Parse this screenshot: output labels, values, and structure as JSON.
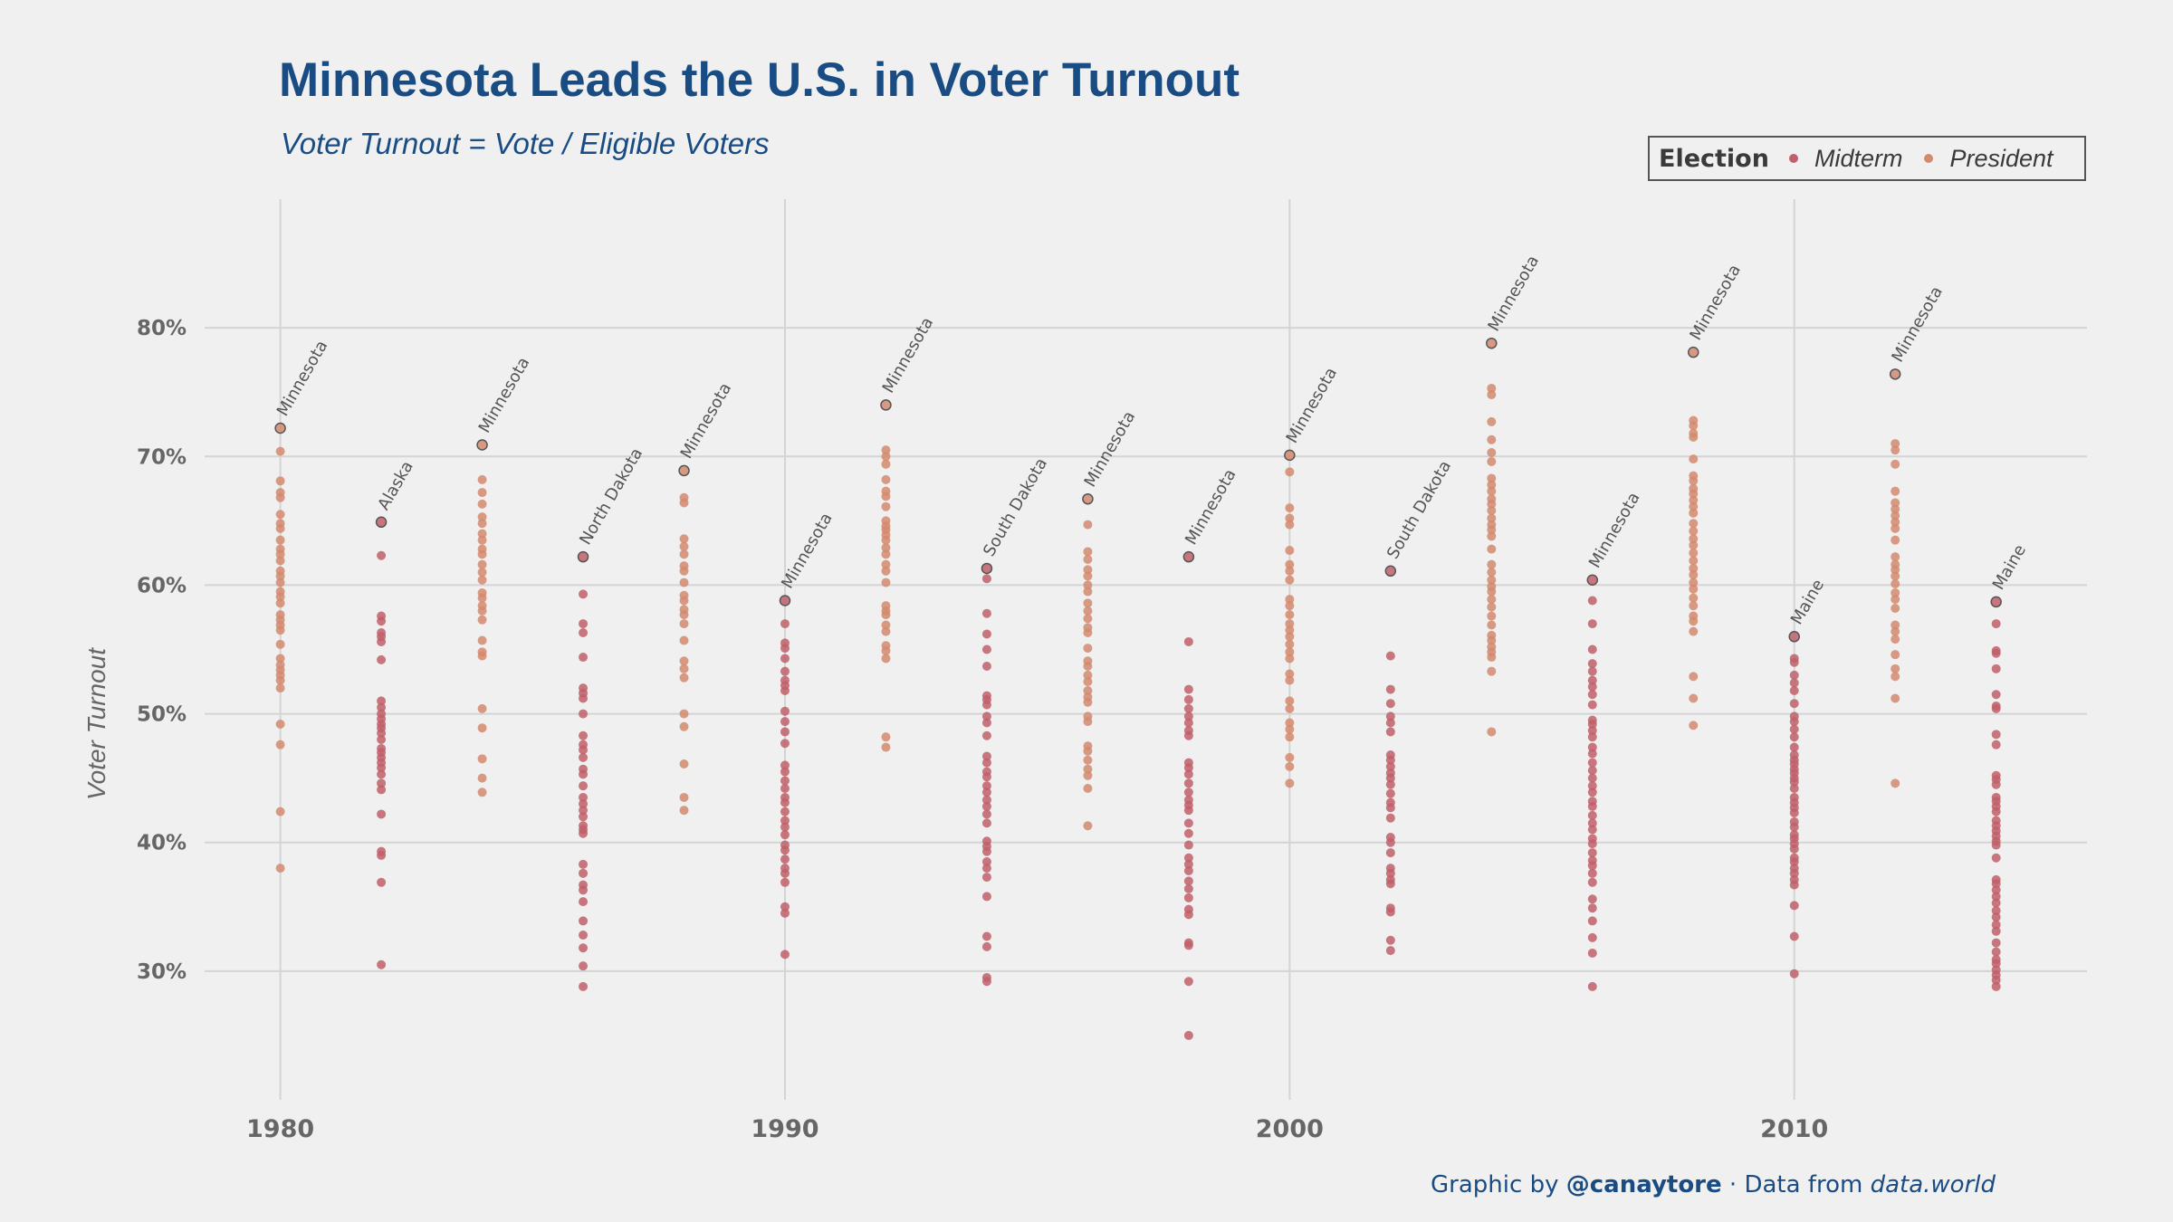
{
  "title": "Minnesota Leads the U.S. in Voter Turnout",
  "subtitle": "Voter Turnout = Vote / Eligible Voters",
  "legend": {
    "title": "Election",
    "items": [
      {
        "label": "Midterm",
        "color": "#c0606a"
      },
      {
        "label": "President",
        "color": "#d48a6e"
      }
    ]
  },
  "caption": {
    "prefix": "Graphic by ",
    "handle": "@canaytore",
    "middle": " · Data from ",
    "source": "data.world"
  },
  "chart_data": {
    "type": "scatter",
    "title": "Minnesota Leads the U.S. in Voter Turnout",
    "subtitle": "Voter Turnout = Vote / Eligible Voters",
    "xlabel": "",
    "ylabel": "Voter Turnout",
    "xlim": [
      1978.5,
      2015.8
    ],
    "ylim": [
      20,
      90
    ],
    "x_ticks": [
      1980,
      1990,
      2000,
      2010
    ],
    "y_ticks": [
      30,
      40,
      50,
      60,
      70,
      80
    ],
    "y_tick_labels": [
      "30%",
      "40%",
      "50%",
      "60%",
      "70%",
      "80%"
    ],
    "grid": true,
    "legend_position": "top-right",
    "series": [
      {
        "name": "Midterm",
        "color": "#c0606a",
        "points": [
          {
            "x": 1982,
            "values": [
              64.9,
              62.3,
              57.6,
              57.2,
              56.3,
              56.0,
              55.6,
              54.2,
              51.0,
              50.5,
              50.0,
              49.6,
              49.2,
              48.9,
              48.5,
              48.0,
              47.3,
              47.0,
              46.6,
              46.2,
              45.8,
              45.3,
              44.6,
              44.1,
              42.2,
              39.3,
              39.0,
              36.9,
              30.5
            ]
          },
          {
            "x": 1986,
            "values": [
              62.2,
              59.3,
              57.0,
              56.3,
              54.4,
              52.0,
              51.6,
              51.2,
              50.0,
              48.3,
              47.6,
              47.2,
              46.6,
              45.7,
              45.3,
              44.4,
              43.5,
              43.0,
              42.5,
              42.0,
              41.3,
              41.0,
              40.7,
              38.3,
              37.6,
              36.7,
              36.3,
              35.4,
              33.9,
              32.8,
              31.8,
              30.4,
              28.8
            ]
          },
          {
            "x": 1990,
            "values": [
              58.8,
              57.0,
              55.5,
              55.1,
              54.3,
              53.3,
              52.6,
              52.2,
              51.8,
              50.2,
              49.4,
              48.6,
              47.7,
              46.0,
              45.5,
              44.8,
              44.2,
              43.5,
              43.1,
              42.4,
              41.7,
              41.2,
              40.6,
              39.8,
              39.4,
              38.7,
              38.0,
              37.6,
              36.9,
              35.0,
              34.5,
              31.3
            ]
          },
          {
            "x": 1994,
            "values": [
              61.3,
              60.5,
              57.8,
              56.2,
              55.0,
              53.7,
              51.4,
              51.1,
              50.7,
              49.8,
              49.3,
              48.3,
              46.7,
              46.2,
              45.5,
              45.1,
              44.4,
              43.9,
              43.3,
              42.8,
              42.2,
              41.5,
              40.1,
              39.7,
              39.3,
              38.5,
              38.0,
              37.3,
              35.8,
              32.7,
              31.9,
              29.5,
              29.2
            ]
          },
          {
            "x": 1998,
            "values": [
              62.2,
              55.6,
              51.9,
              51.1,
              50.4,
              49.8,
              49.3,
              48.7,
              48.3,
              46.2,
              45.8,
              45.3,
              44.6,
              43.9,
              43.3,
              42.9,
              42.5,
              41.5,
              40.7,
              39.8,
              38.8,
              38.3,
              37.8,
              37.0,
              36.4,
              35.7,
              34.8,
              34.4,
              32.2,
              32.0,
              29.2,
              25.0
            ]
          },
          {
            "x": 2002,
            "values": [
              61.1,
              54.5,
              51.9,
              50.8,
              49.8,
              49.3,
              48.6,
              46.8,
              46.4,
              45.9,
              45.4,
              45.0,
              44.5,
              43.8,
              43.1,
              42.7,
              41.9,
              40.4,
              40.0,
              39.2,
              38.0,
              37.6,
              37.1,
              36.8,
              34.9,
              34.6,
              32.4,
              31.6
            ]
          },
          {
            "x": 2006,
            "values": [
              60.4,
              58.8,
              57.0,
              55.0,
              53.9,
              53.3,
              52.6,
              52.1,
              51.5,
              50.7,
              49.5,
              49.2,
              48.7,
              48.2,
              47.4,
              46.9,
              46.2,
              45.6,
              45.0,
              44.4,
              43.9,
              43.2,
              42.8,
              42.1,
              41.5,
              41.0,
              40.3,
              39.9,
              39.2,
              38.6,
              38.2,
              37.6,
              36.9,
              35.6,
              34.9,
              33.9,
              32.6,
              31.4,
              28.8
            ]
          },
          {
            "x": 2010,
            "values": [
              56.0,
              54.3,
              54.0,
              53.0,
              52.4,
              51.8,
              50.8,
              49.8,
              49.4,
              48.8,
              48.2,
              47.4,
              46.8,
              46.4,
              46.1,
              45.7,
              45.4,
              45.0,
              44.7,
              44.2,
              43.5,
              43.1,
              42.7,
              42.3,
              41.6,
              41.2,
              40.6,
              40.3,
              39.9,
              39.5,
              38.8,
              38.5,
              38.0,
              37.6,
              37.1,
              36.7,
              35.1,
              32.7,
              29.8
            ]
          },
          {
            "x": 2014,
            "values": [
              58.7,
              57.0,
              54.9,
              54.7,
              53.5,
              51.5,
              50.6,
              50.4,
              48.4,
              47.6,
              45.2,
              44.9,
              44.5,
              43.5,
              43.2,
              42.8,
              42.4,
              41.7,
              41.3,
              40.9,
              40.5,
              40.1,
              39.8,
              38.8,
              37.1,
              36.8,
              36.3,
              35.8,
              35.3,
              34.7,
              34.2,
              33.6,
              33.1,
              32.2,
              31.5,
              30.9,
              30.6,
              30.1,
              29.7,
              29.3,
              28.8
            ]
          }
        ]
      },
      {
        "name": "President",
        "color": "#d48a6e",
        "points": [
          {
            "x": 1980,
            "values": [
              72.2,
              70.4,
              68.1,
              67.2,
              66.8,
              65.5,
              64.8,
              64.4,
              63.5,
              62.8,
              62.4,
              61.9,
              61.1,
              60.7,
              60.2,
              59.5,
              59.1,
              58.6,
              57.7,
              57.3,
              56.9,
              56.5,
              55.4,
              54.3,
              53.8,
              53.4,
              53.0,
              52.6,
              52.0,
              49.2,
              47.6,
              42.4,
              38.0
            ]
          },
          {
            "x": 1984,
            "values": [
              70.9,
              68.2,
              67.2,
              66.3,
              65.3,
              64.8,
              64.0,
              63.5,
              62.8,
              62.4,
              61.6,
              61.0,
              60.4,
              59.4,
              59.0,
              58.4,
              58.0,
              57.3,
              55.7,
              54.8,
              54.5,
              50.4,
              48.9,
              46.5,
              45.0,
              43.9
            ]
          },
          {
            "x": 1988,
            "values": [
              68.9,
              66.8,
              66.4,
              63.6,
              63.0,
              62.4,
              61.5,
              61.1,
              60.2,
              59.2,
              58.8,
              58.1,
              57.7,
              57.0,
              55.7,
              54.1,
              53.5,
              52.8,
              50.0,
              49.0,
              46.1,
              43.5,
              42.5
            ]
          },
          {
            "x": 1992,
            "values": [
              74.0,
              70.5,
              70.0,
              69.4,
              68.2,
              67.3,
              66.9,
              66.1,
              65.0,
              64.6,
              64.3,
              63.9,
              63.5,
              62.9,
              62.4,
              61.6,
              61.1,
              60.2,
              58.4,
              58.0,
              57.7,
              56.9,
              56.4,
              55.3,
              54.9,
              54.3,
              48.2,
              47.4
            ]
          },
          {
            "x": 1996,
            "values": [
              66.7,
              64.7,
              62.6,
              62.0,
              61.2,
              60.7,
              60.0,
              59.5,
              58.6,
              58.0,
              57.4,
              56.7,
              56.3,
              55.1,
              54.1,
              53.7,
              53.0,
              52.5,
              51.8,
              51.3,
              50.9,
              49.8,
              49.4,
              47.5,
              47.1,
              46.4,
              45.7,
              45.2,
              44.2,
              41.3
            ]
          },
          {
            "x": 2000,
            "values": [
              70.1,
              68.8,
              66.0,
              65.2,
              64.7,
              62.7,
              61.6,
              61.1,
              60.4,
              58.9,
              58.4,
              57.7,
              57.0,
              56.5,
              56.0,
              55.4,
              54.8,
              54.3,
              53.1,
              52.6,
              51.0,
              50.4,
              49.3,
              48.8,
              48.2,
              46.6,
              45.9,
              44.6
            ]
          },
          {
            "x": 2004,
            "values": [
              78.8,
              75.3,
              74.8,
              72.7,
              71.3,
              70.3,
              69.6,
              68.3,
              67.8,
              67.3,
              66.7,
              66.3,
              65.8,
              65.2,
              64.7,
              64.3,
              63.8,
              62.8,
              61.6,
              61.0,
              60.4,
              59.9,
              59.5,
              58.9,
              58.3,
              57.6,
              56.9,
              56.1,
              55.7,
              55.2,
              54.8,
              54.4,
              53.3,
              48.6
            ]
          },
          {
            "x": 2008,
            "values": [
              78.1,
              72.8,
              72.4,
              71.8,
              71.5,
              69.8,
              68.5,
              68.1,
              67.5,
              67.1,
              66.6,
              66.1,
              65.6,
              64.8,
              64.2,
              63.6,
              63.1,
              62.5,
              61.9,
              61.3,
              60.8,
              60.2,
              59.7,
              59.0,
              58.4,
              57.6,
              57.2,
              56.4,
              52.9,
              51.2,
              49.1
            ]
          },
          {
            "x": 2012,
            "values": [
              76.4,
              71.0,
              70.5,
              69.4,
              67.3,
              66.4,
              65.9,
              65.4,
              64.9,
              64.4,
              63.5,
              62.2,
              61.6,
              61.2,
              60.7,
              60.1,
              59.4,
              58.9,
              58.2,
              56.9,
              56.4,
              55.8,
              54.6,
              53.5,
              52.9,
              51.2,
              44.6
            ]
          }
        ]
      }
    ],
    "annotations": [
      {
        "x": 1980,
        "y": 72.2,
        "text": "Minnesota"
      },
      {
        "x": 1982,
        "y": 64.9,
        "text": "Alaska"
      },
      {
        "x": 1984,
        "y": 70.9,
        "text": "Minnesota"
      },
      {
        "x": 1986,
        "y": 62.2,
        "text": "North Dakota"
      },
      {
        "x": 1988,
        "y": 68.9,
        "text": "Minnesota"
      },
      {
        "x": 1990,
        "y": 58.8,
        "text": "Minnesota"
      },
      {
        "x": 1992,
        "y": 74.0,
        "text": "Minnesota"
      },
      {
        "x": 1994,
        "y": 61.3,
        "text": "South Dakota"
      },
      {
        "x": 1996,
        "y": 66.7,
        "text": "Minnesota"
      },
      {
        "x": 1998,
        "y": 62.2,
        "text": "Minnesota"
      },
      {
        "x": 2000,
        "y": 70.1,
        "text": "Minnesota"
      },
      {
        "x": 2002,
        "y": 61.1,
        "text": "South Dakota"
      },
      {
        "x": 2004,
        "y": 78.8,
        "text": "Minnesota"
      },
      {
        "x": 2006,
        "y": 60.4,
        "text": "Minnesota"
      },
      {
        "x": 2008,
        "y": 78.1,
        "text": "Minnesota"
      },
      {
        "x": 2010,
        "y": 56.0,
        "text": "Maine"
      },
      {
        "x": 2012,
        "y": 76.4,
        "text": "Minnesota"
      },
      {
        "x": 2014,
        "y": 58.7,
        "text": "Maine"
      }
    ]
  }
}
